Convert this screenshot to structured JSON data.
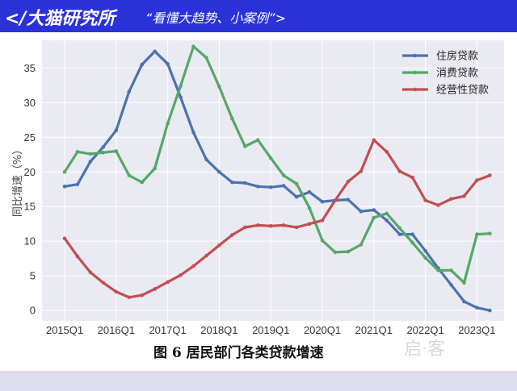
{
  "banner": {
    "left_text": "</大猫研究所",
    "slogan": "“看懂大趋势、小案例”>"
  },
  "caption": "图 6   居民部门各类贷款增速",
  "watermark": "启·客",
  "chart_data": {
    "type": "line",
    "title": "",
    "ylabel": "同比增速（%）",
    "xlabel": "",
    "ylim": [
      -1.5,
      39
    ],
    "yticks": [
      0,
      5,
      10,
      15,
      20,
      25,
      30,
      35
    ],
    "xtick_labels": [
      "2015Q1",
      "2016Q1",
      "2017Q1",
      "2018Q1",
      "2019Q1",
      "2020Q1",
      "2021Q1",
      "2022Q1",
      "2023Q1"
    ],
    "x": [
      "2015Q1",
      "2015Q2",
      "2015Q3",
      "2015Q4",
      "2016Q1",
      "2016Q2",
      "2016Q3",
      "2016Q4",
      "2017Q1",
      "2017Q2",
      "2017Q3",
      "2017Q4",
      "2018Q1",
      "2018Q2",
      "2018Q3",
      "2018Q4",
      "2019Q1",
      "2019Q2",
      "2019Q3",
      "2019Q4",
      "2020Q1",
      "2020Q2",
      "2020Q3",
      "2020Q4",
      "2021Q1",
      "2021Q2",
      "2021Q3",
      "2021Q4",
      "2022Q1",
      "2022Q2",
      "2022Q3",
      "2022Q4",
      "2023Q1",
      "2023Q2"
    ],
    "grid": true,
    "legend_position": "top-right",
    "series": [
      {
        "name": "住房贷款",
        "color": "#4c72b0",
        "values": [
          17.9,
          18.2,
          21.5,
          23.6,
          26.0,
          31.6,
          35.5,
          37.4,
          35.6,
          30.8,
          25.7,
          21.8,
          20.0,
          18.5,
          18.4,
          17.9,
          17.8,
          18.0,
          16.4,
          17.1,
          15.7,
          15.9,
          16.0,
          14.3,
          14.5,
          13.0,
          11.0,
          11.0,
          8.6,
          6.1,
          3.7,
          1.3,
          0.4,
          0.0
        ]
      },
      {
        "name": "消费贷款",
        "color": "#55a868",
        "values": [
          20.0,
          22.9,
          22.6,
          22.8,
          23.0,
          19.5,
          18.5,
          20.5,
          27.0,
          32.4,
          38.1,
          36.5,
          32.3,
          27.7,
          23.7,
          24.6,
          22.0,
          19.5,
          18.3,
          14.8,
          10.1,
          8.4,
          8.5,
          9.5,
          13.4,
          14.0,
          11.9,
          9.8,
          7.6,
          5.8,
          5.8,
          4.0,
          11.0,
          11.1
        ]
      },
      {
        "name": "经营性贷款",
        "color": "#c44e52",
        "values": [
          10.4,
          7.8,
          5.5,
          4.0,
          2.7,
          1.9,
          2.2,
          3.1,
          4.1,
          5.1,
          6.4,
          7.9,
          9.4,
          10.9,
          12.0,
          12.3,
          12.2,
          12.3,
          12.0,
          12.5,
          13.0,
          15.9,
          18.6,
          20.1,
          24.6,
          22.9,
          20.1,
          19.2,
          15.9,
          15.2,
          16.1,
          16.5,
          18.8,
          19.5
        ]
      }
    ]
  }
}
